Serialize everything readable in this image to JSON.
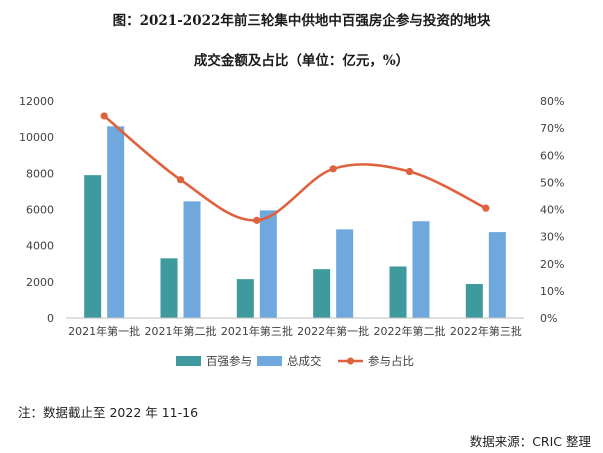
{
  "chart_data": {
    "type": "bar",
    "title": "图：2021-2022年前三轮集中供地中百强房企参与投资的地块",
    "subtitle": "成交金额及占比（单位：亿元，%）",
    "categories": [
      "2021年第一批",
      "2021年第二批",
      "2021年第三批",
      "2022年第一批",
      "2022年第二批",
      "2022年第三批"
    ],
    "series": [
      {
        "name": "百强参与",
        "type": "bar",
        "axis": "left",
        "color": "#3e9a9c",
        "values": [
          7900,
          3300,
          2150,
          2700,
          2850,
          1880
        ]
      },
      {
        "name": "总成交",
        "type": "bar",
        "axis": "left",
        "color": "#6fa8dc",
        "values": [
          10600,
          6450,
          5950,
          4900,
          5350,
          4750
        ]
      },
      {
        "name": "参与占比",
        "type": "line",
        "axis": "right",
        "smooth": true,
        "color": "#e0613d",
        "values": [
          74.5,
          51,
          36,
          55,
          54,
          40.5
        ]
      }
    ],
    "left_axis": {
      "min": 0,
      "max": 12000,
      "ticks": [
        "0",
        "2000",
        "4000",
        "6000",
        "8000",
        "10000",
        "12000"
      ]
    },
    "right_axis": {
      "min": 0,
      "max": 80,
      "ticks": [
        "0%",
        "10%",
        "20%",
        "30%",
        "40%",
        "50%",
        "60%",
        "70%",
        "80%"
      ]
    },
    "grid": false,
    "legend": "bottom"
  },
  "footnote": "注：数据截止至 2022 年 11-16",
  "source": "数据来源：CRIC 整理"
}
